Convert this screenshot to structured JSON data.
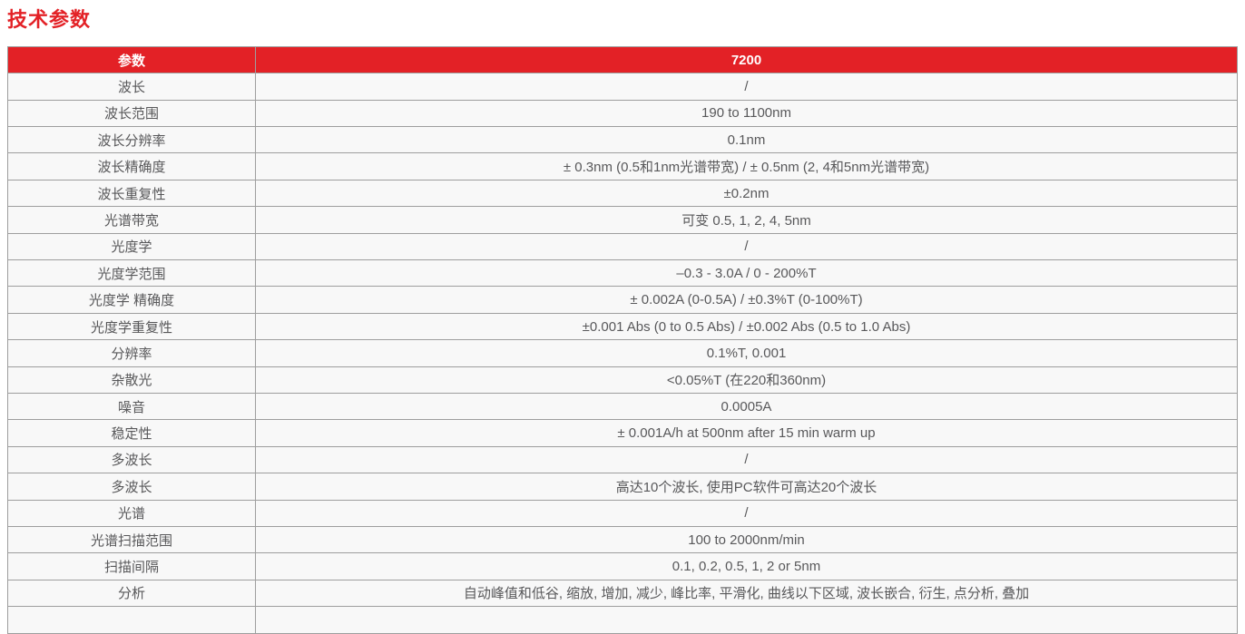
{
  "title": "技术参数",
  "colors": {
    "accent_red": "#e32126",
    "header_text": "#ffffff",
    "cell_background": "#f8f8f8",
    "cell_text": "#58585a",
    "border": "#9e9e9e"
  },
  "table": {
    "columns": {
      "param_header": "参数",
      "model_header": "7200"
    },
    "rows": [
      {
        "param": "波长",
        "value": "/"
      },
      {
        "param": "波长范围",
        "value": "190 to 1100nm"
      },
      {
        "param": "波长分辨率",
        "value": "0.1nm"
      },
      {
        "param": "波长精确度",
        "value": "± 0.3nm (0.5和1nm光谱带宽) / ± 0.5nm (2, 4和5nm光谱带宽)"
      },
      {
        "param": "波长重复性",
        "value": "±0.2nm"
      },
      {
        "param": "光谱带宽",
        "value": "可变 0.5, 1, 2, 4, 5nm"
      },
      {
        "param": "光度学",
        "value": "/"
      },
      {
        "param": "光度学范围",
        "value": "–0.3 - 3.0A / 0 - 200%T"
      },
      {
        "param": "光度学 精确度",
        "value": "± 0.002A (0-0.5A) / ±0.3%T (0-100%T)"
      },
      {
        "param": "光度学重复性",
        "value": "±0.001 Abs (0 to 0.5 Abs) / ±0.002 Abs (0.5 to 1.0 Abs)"
      },
      {
        "param": "分辨率",
        "value": "0.1%T, 0.001"
      },
      {
        "param": "杂散光",
        "value": "<0.05%T (在220和360nm)"
      },
      {
        "param": "噪音",
        "value": "0.0005A"
      },
      {
        "param": "稳定性",
        "value": "± 0.001A/h at 500nm after 15 min warm up"
      },
      {
        "param": "多波长",
        "value": "/"
      },
      {
        "param": "多波长",
        "value": "高达10个波长, 使用PC软件可高达20个波长"
      },
      {
        "param": "光谱",
        "value": "/"
      },
      {
        "param": "光谱扫描范围",
        "value": "100 to 2000nm/min"
      },
      {
        "param": "扫描间隔",
        "value": "0.1, 0.2, 0.5, 1, 2 or 5nm"
      },
      {
        "param": "分析",
        "value": "自动峰值和低谷, 缩放, 增加, 减少, 峰比率, 平滑化, 曲线以下区域, 波长嵌合, 衍生, 点分析, 叠加"
      },
      {
        "param": "",
        "value": ""
      }
    ]
  }
}
